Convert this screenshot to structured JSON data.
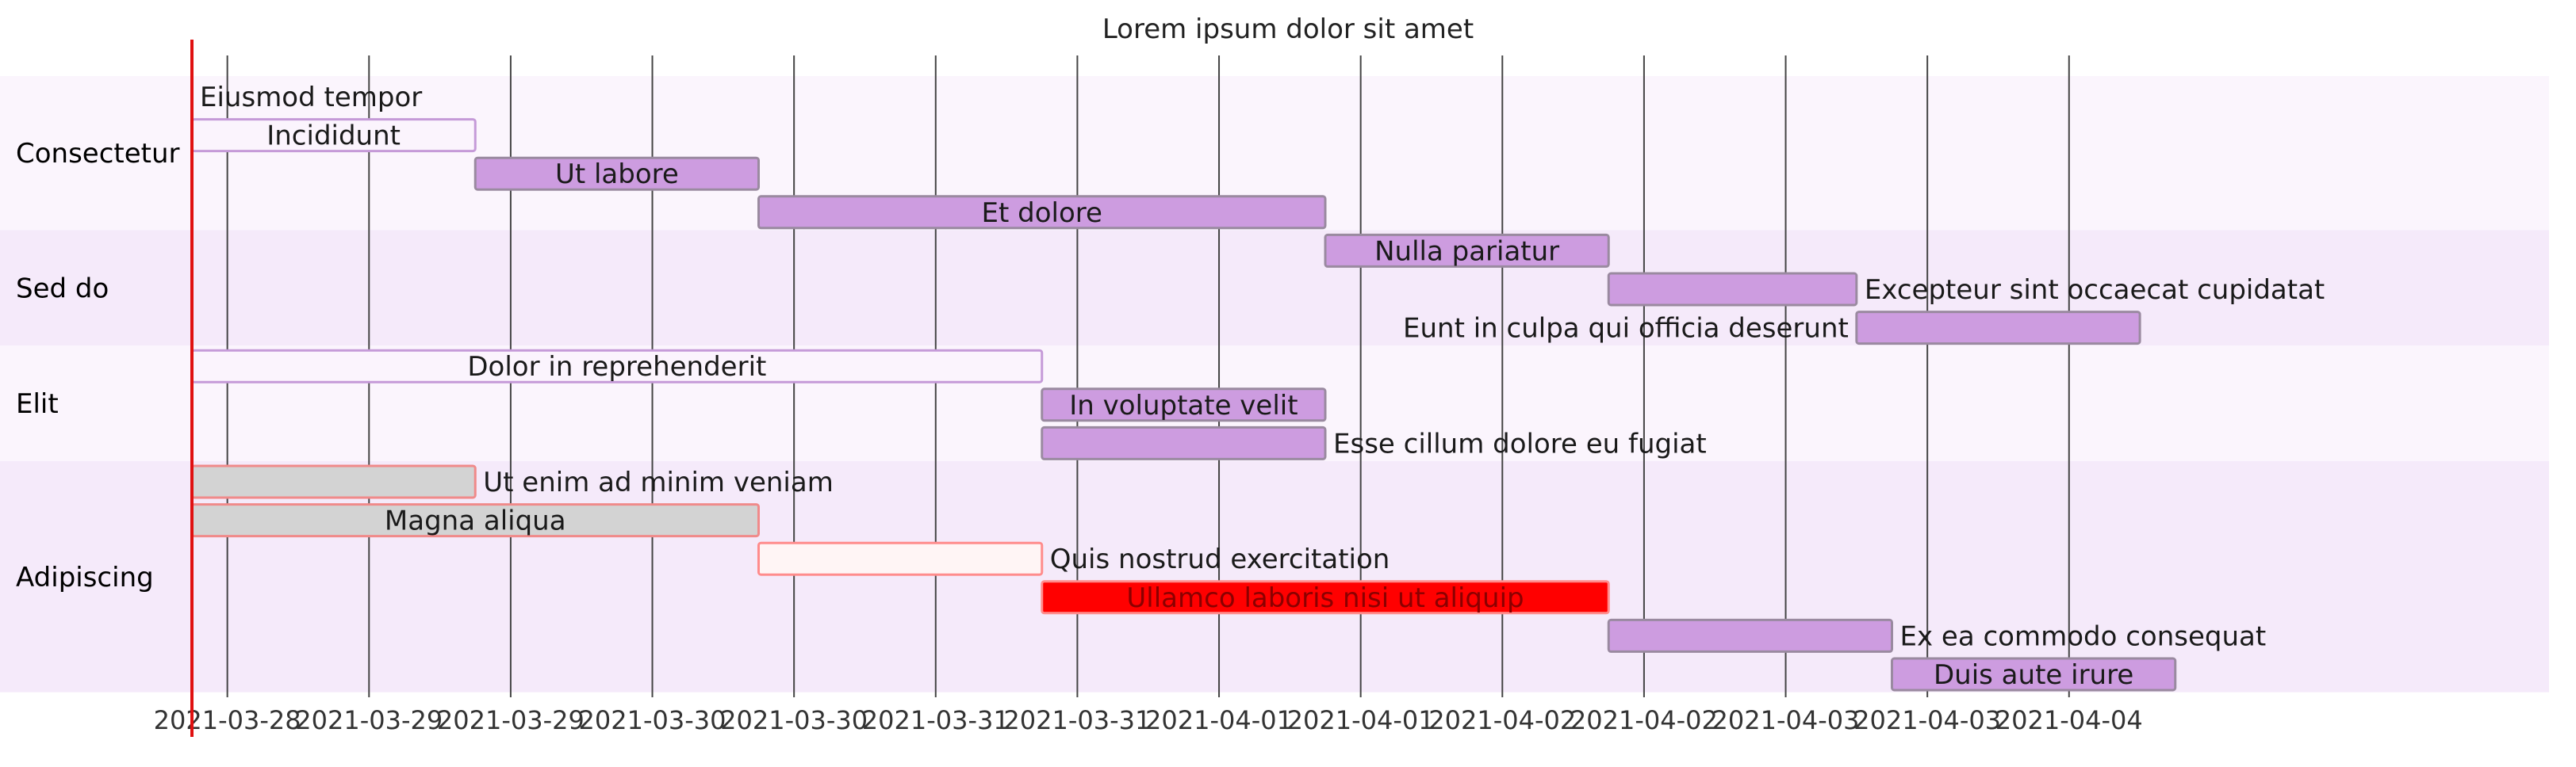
{
  "chart_data": {
    "type": "gantt",
    "title": "Lorem ipsum dolor sit amet",
    "x_axis": {
      "start": "2021-03-27T21:00",
      "end": "2021-04-04T21:00",
      "tick_labels": [
        "2021-03-28",
        "2021-03-29",
        "2021-03-29",
        "2021-03-30",
        "2021-03-30",
        "2021-03-31",
        "2021-03-31",
        "2021-04-01",
        "2021-04-01",
        "2021-04-02",
        "2021-04-02",
        "2021-04-03",
        "2021-04-03",
        "2021-04-04"
      ],
      "tick_values": [
        "2021-03-28T00:00",
        "2021-03-28T12:00",
        "2021-03-29T00:00",
        "2021-03-29T12:00",
        "2021-03-30T00:00",
        "2021-03-30T12:00",
        "2021-03-31T00:00",
        "2021-03-31T12:00",
        "2021-04-01T00:00",
        "2021-04-01T12:00",
        "2021-04-02T00:00",
        "2021-04-02T12:00",
        "2021-04-03T00:00",
        "2021-04-03T12:00"
      ]
    },
    "today_marker": "2021-03-27T21:00",
    "sections": [
      {
        "name": "Consectetur",
        "tasks": [
          {
            "label": "Eiusmod tempor",
            "start": "2021-03-27T21:00",
            "end": "2021-03-27T21:00",
            "style": "milestone"
          },
          {
            "label": "Incididunt",
            "start": "2021-03-27T21:00",
            "end": "2021-03-28T21:00",
            "style": "active"
          },
          {
            "label": "Ut labore",
            "start": "2021-03-28T21:00",
            "end": "2021-03-29T21:00",
            "style": "normal"
          },
          {
            "label": "Et dolore",
            "start": "2021-03-29T21:00",
            "end": "2021-03-31T21:00",
            "style": "normal"
          }
        ]
      },
      {
        "name": "Sed do",
        "tasks": [
          {
            "label": "Nulla pariatur",
            "start": "2021-03-31T21:00",
            "end": "2021-04-01T21:00",
            "style": "normal"
          },
          {
            "label": "Excepteur sint occaecat cupidatat",
            "start": "2021-04-01T21:00",
            "end": "2021-04-02T18:00",
            "style": "normal"
          },
          {
            "label": "Eunt in culpa qui officia deserunt",
            "start": "2021-04-02T18:00",
            "end": "2021-04-03T18:00",
            "style": "normal"
          }
        ]
      },
      {
        "name": "Elit",
        "tasks": [
          {
            "label": "Dolor in reprehenderit",
            "start": "2021-03-27T21:00",
            "end": "2021-03-30T21:00",
            "style": "active"
          },
          {
            "label": "In voluptate velit",
            "start": "2021-03-30T21:00",
            "end": "2021-03-31T21:00",
            "style": "normal"
          },
          {
            "label": "Esse cillum dolore eu fugiat",
            "start": "2021-03-30T21:00",
            "end": "2021-03-31T21:00",
            "style": "normal"
          }
        ]
      },
      {
        "name": "Adipiscing",
        "tasks": [
          {
            "label": "Ut enim ad minim veniam",
            "start": "2021-03-27T21:00",
            "end": "2021-03-28T21:00",
            "style": "done"
          },
          {
            "label": "Magna aliqua",
            "start": "2021-03-27T21:00",
            "end": "2021-03-29T21:00",
            "style": "done"
          },
          {
            "label": "Quis nostrud exercitation",
            "start": "2021-03-29T21:00",
            "end": "2021-03-30T21:00",
            "style": "crit-active"
          },
          {
            "label": "Ullamco laboris nisi ut aliquip",
            "start": "2021-03-30T21:00",
            "end": "2021-04-01T21:00",
            "style": "crit"
          },
          {
            "label": "Ex ea commodo consequat",
            "start": "2021-04-01T21:00",
            "end": "2021-04-02T21:00",
            "style": "normal"
          },
          {
            "label": "Duis aute irure",
            "start": "2021-04-02T21:00",
            "end": "2021-04-03T21:00",
            "style": "normal"
          }
        ]
      }
    ],
    "colors": {
      "section_band_a": "#fbf5fd",
      "section_band_b": "#f5eafa",
      "task_normal": "#cd9ce0",
      "task_normal_stroke": "#9a8aa0",
      "task_active": "#fbf4fd",
      "task_active_stroke": "#c59ad8",
      "task_done": "#d3d3d3",
      "task_done_stroke": "#f08a8a",
      "task_crit_active": "#fff5f5",
      "task_crit_active_stroke": "#ff8c8c",
      "task_crit": "#ff0000",
      "task_crit_stroke": "#ff8c8c",
      "crit_text": "#8b0000",
      "today_line": "#e01010",
      "grid": "#444444"
    }
  }
}
